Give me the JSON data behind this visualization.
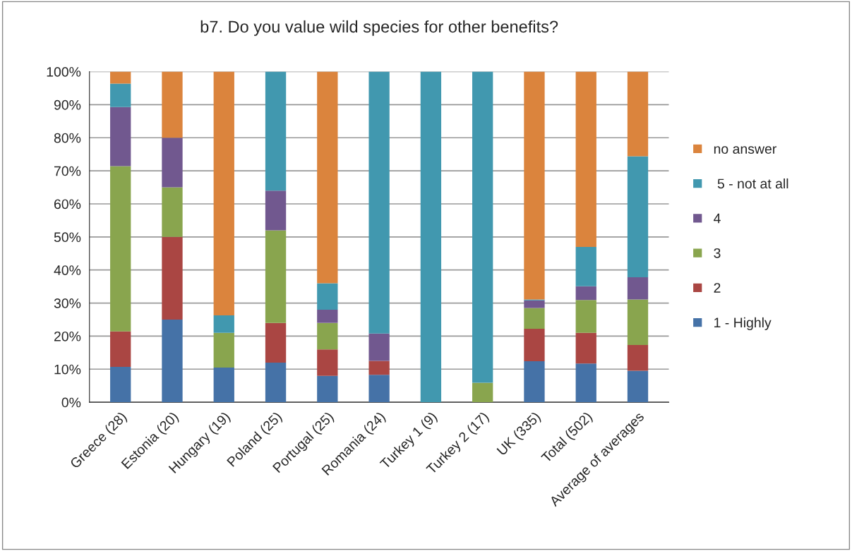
{
  "chart_data": {
    "type": "bar",
    "title": "b7. Do you value wild species for other benefits?",
    "categories": [
      "Greece (28)",
      "Estonia (20)",
      "Hungary (19)",
      "Poland (25)",
      "Portugal (25)",
      "Romania (24)",
      "Turkey 1 (9)",
      "Turkey 2 (17)",
      "UK (335)",
      "Total (502)",
      "Average of averages"
    ],
    "stacked": true,
    "series": [
      {
        "name": "1 - Highly",
        "color": "#4572a7",
        "values": [
          10.7,
          25,
          10.5,
          12,
          8,
          8.3,
          0,
          0,
          12.4,
          11.7,
          9.5
        ]
      },
      {
        "name": "2",
        "color": "#aa4643",
        "values": [
          10.7,
          25,
          0,
          12,
          8,
          4.2,
          0,
          0,
          9.8,
          9.3,
          7.8
        ]
      },
      {
        "name": "3",
        "color": "#89a54e",
        "values": [
          50,
          15,
          10.5,
          28,
          8,
          0,
          0,
          5.9,
          6.3,
          9.9,
          13.8
        ]
      },
      {
        "name": "4",
        "color": "#71588f",
        "values": [
          17.9,
          15,
          0,
          12,
          4,
          8.3,
          0,
          0,
          2.3,
          4.2,
          6.7
        ]
      },
      {
        "name": " 5 - not at all",
        "color": "#4198af",
        "values": [
          7.1,
          0,
          5.3,
          36,
          8,
          79.2,
          100,
          94.1,
          0.3,
          11.9,
          36.6
        ]
      },
      {
        "name": "no answer",
        "color": "#db843d",
        "values": [
          3.6,
          20,
          73.7,
          0,
          64,
          0,
          0,
          0,
          68.9,
          53,
          25.6
        ]
      }
    ],
    "ylim": [
      0,
      100
    ],
    "yticks": [
      {
        "value": 0,
        "label": "0%"
      },
      {
        "value": 10,
        "label": "10%"
      },
      {
        "value": 20,
        "label": "20%"
      },
      {
        "value": 30,
        "label": "30%"
      },
      {
        "value": 40,
        "label": "40%"
      },
      {
        "value": 50,
        "label": "50%"
      },
      {
        "value": 60,
        "label": "60%"
      },
      {
        "value": 70,
        "label": "70%"
      },
      {
        "value": 80,
        "label": "80%"
      },
      {
        "value": 90,
        "label": "90%"
      },
      {
        "value": 100,
        "label": "100%"
      }
    ],
    "grid": "y",
    "legend": "right"
  }
}
